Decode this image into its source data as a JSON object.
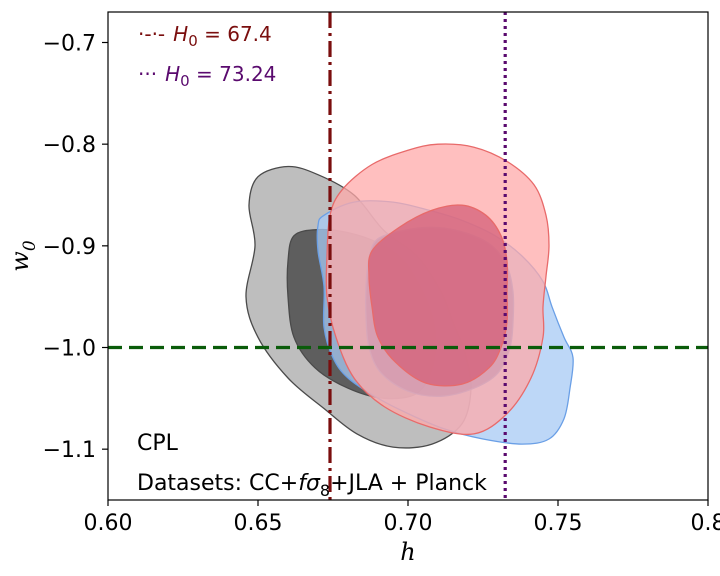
{
  "chart_data": {
    "type": "contour",
    "xlabel": "h",
    "ylabel": "w_0",
    "xlim": [
      0.6,
      0.8
    ],
    "ylim": [
      -1.15,
      -0.67
    ],
    "xticks": [
      0.6,
      0.65,
      0.7,
      0.75,
      0.8
    ],
    "xtick_labels": [
      "0.60",
      "0.65",
      "0.70",
      "0.75",
      "0.8"
    ],
    "yticks": [
      -0.7,
      -0.8,
      -0.9,
      -1.0,
      -1.1
    ],
    "ytick_labels": [
      "−0.7",
      "−0.8",
      "−0.9",
      "−1.0",
      "−1.1"
    ],
    "model_label": "CPL",
    "datasets_text_prefix": "Datasets: CC+",
    "datasets_text_suffix": "+JLA + Planck",
    "grid": false,
    "legend_position": "top-left",
    "reference_lines": [
      {
        "orientation": "vertical",
        "x": 0.674,
        "style": "dashdot",
        "color": "#7a0e0e",
        "label": "H₀ = 67.4"
      },
      {
        "orientation": "vertical",
        "x": 0.7324,
        "style": "dotted",
        "color": "#5a0a6e",
        "label": "H₀ = 73.24"
      },
      {
        "orientation": "horizontal",
        "y": -1.0,
        "style": "dashed",
        "color": "#0a5c0a"
      }
    ],
    "legend": [
      {
        "symbol": "·-·-",
        "prefix": "H",
        "sub": "0",
        "value": " = 67.4",
        "color": "#7a0e0e"
      },
      {
        "symbol": "···",
        "prefix": "H",
        "sub": "0",
        "value": " = 73.24",
        "color": "#5a0a6e"
      }
    ],
    "contours": [
      {
        "name": "grey",
        "fill_outer": "#a8a8a8",
        "fill_inner": "#3d3d3d",
        "edge": "#4a4a4a",
        "outer": [
          [
            0.65,
            -0.832
          ],
          [
            0.66,
            -0.822
          ],
          [
            0.67,
            -0.83
          ],
          [
            0.682,
            -0.85
          ],
          [
            0.692,
            -0.885
          ],
          [
            0.703,
            -0.91
          ],
          [
            0.711,
            -0.945
          ],
          [
            0.715,
            -0.975
          ],
          [
            0.719,
            -1.005
          ],
          [
            0.721,
            -1.04
          ],
          [
            0.718,
            -1.075
          ],
          [
            0.708,
            -1.095
          ],
          [
            0.695,
            -1.098
          ],
          [
            0.683,
            -1.085
          ],
          [
            0.672,
            -1.06
          ],
          [
            0.66,
            -1.03
          ],
          [
            0.65,
            -0.99
          ],
          [
            0.646,
            -0.95
          ],
          [
            0.649,
            -0.9
          ],
          [
            0.647,
            -0.86
          ]
        ],
        "inner": [
          [
            0.662,
            -0.89
          ],
          [
            0.67,
            -0.884
          ],
          [
            0.68,
            -0.887
          ],
          [
            0.69,
            -0.897
          ],
          [
            0.698,
            -0.913
          ],
          [
            0.703,
            -0.935
          ],
          [
            0.707,
            -0.96
          ],
          [
            0.709,
            -0.988
          ],
          [
            0.708,
            -1.02
          ],
          [
            0.703,
            -1.045
          ],
          [
            0.692,
            -1.05
          ],
          [
            0.68,
            -1.04
          ],
          [
            0.669,
            -1.02
          ],
          [
            0.662,
            -0.99
          ],
          [
            0.66,
            -0.95
          ],
          [
            0.66,
            -0.915
          ]
        ]
      },
      {
        "name": "blue",
        "fill_outer": "#a7caf4",
        "fill_inner": "#4d6ec2",
        "edge": "#6a9fe6",
        "outer": [
          [
            0.672,
            -0.87
          ],
          [
            0.682,
            -0.857
          ],
          [
            0.695,
            -0.857
          ],
          [
            0.707,
            -0.865
          ],
          [
            0.718,
            -0.875
          ],
          [
            0.729,
            -0.89
          ],
          [
            0.738,
            -0.91
          ],
          [
            0.745,
            -0.935
          ],
          [
            0.748,
            -0.96
          ],
          [
            0.752,
            -0.99
          ],
          [
            0.755,
            -1.01
          ],
          [
            0.754,
            -1.04
          ],
          [
            0.752,
            -1.07
          ],
          [
            0.747,
            -1.09
          ],
          [
            0.738,
            -1.095
          ],
          [
            0.725,
            -1.09
          ],
          [
            0.712,
            -1.08
          ],
          [
            0.7,
            -1.065
          ],
          [
            0.69,
            -1.05
          ],
          [
            0.68,
            -1.03
          ],
          [
            0.675,
            -1.01
          ],
          [
            0.672,
            -0.98
          ],
          [
            0.672,
            -0.94
          ],
          [
            0.67,
            -0.905
          ],
          [
            0.67,
            -0.88
          ]
        ],
        "inner": [
          [
            0.69,
            -0.893
          ],
          [
            0.7,
            -0.884
          ],
          [
            0.71,
            -0.882
          ],
          [
            0.72,
            -0.888
          ],
          [
            0.728,
            -0.9
          ],
          [
            0.733,
            -0.92
          ],
          [
            0.735,
            -0.945
          ],
          [
            0.735,
            -0.975
          ],
          [
            0.734,
            -1.0
          ],
          [
            0.73,
            -1.025
          ],
          [
            0.722,
            -1.04
          ],
          [
            0.711,
            -1.048
          ],
          [
            0.7,
            -1.043
          ],
          [
            0.691,
            -1.025
          ],
          [
            0.687,
            -1.0
          ],
          [
            0.686,
            -0.97
          ],
          [
            0.686,
            -0.94
          ],
          [
            0.687,
            -0.912
          ]
        ]
      },
      {
        "name": "red",
        "fill_outer": "#ffaaaa",
        "fill_inner": "#d45f78",
        "edge": "#e86a6a",
        "outer": [
          [
            0.678,
            -0.845
          ],
          [
            0.688,
            -0.82
          ],
          [
            0.7,
            -0.806
          ],
          [
            0.71,
            -0.8
          ],
          [
            0.722,
            -0.803
          ],
          [
            0.733,
            -0.817
          ],
          [
            0.742,
            -0.84
          ],
          [
            0.746,
            -0.87
          ],
          [
            0.747,
            -0.9
          ],
          [
            0.746,
            -0.93
          ],
          [
            0.745,
            -0.96
          ],
          [
            0.745,
            -0.99
          ],
          [
            0.741,
            -1.03
          ],
          [
            0.733,
            -1.065
          ],
          [
            0.722,
            -1.085
          ],
          [
            0.707,
            -1.078
          ],
          [
            0.692,
            -1.058
          ],
          [
            0.682,
            -1.03
          ],
          [
            0.676,
            -0.99
          ],
          [
            0.673,
            -0.95
          ],
          [
            0.673,
            -0.91
          ],
          [
            0.674,
            -0.87
          ]
        ],
        "inner": [
          [
            0.688,
            -0.905
          ],
          [
            0.697,
            -0.882
          ],
          [
            0.708,
            -0.865
          ],
          [
            0.718,
            -0.86
          ],
          [
            0.726,
            -0.87
          ],
          [
            0.731,
            -0.89
          ],
          [
            0.733,
            -0.915
          ],
          [
            0.733,
            -0.945
          ],
          [
            0.733,
            -0.975
          ],
          [
            0.731,
            -1.0
          ],
          [
            0.727,
            -1.02
          ],
          [
            0.718,
            -1.036
          ],
          [
            0.706,
            -1.035
          ],
          [
            0.696,
            -1.015
          ],
          [
            0.69,
            -0.99
          ],
          [
            0.688,
            -0.96
          ],
          [
            0.687,
            -0.93
          ]
        ]
      }
    ]
  }
}
